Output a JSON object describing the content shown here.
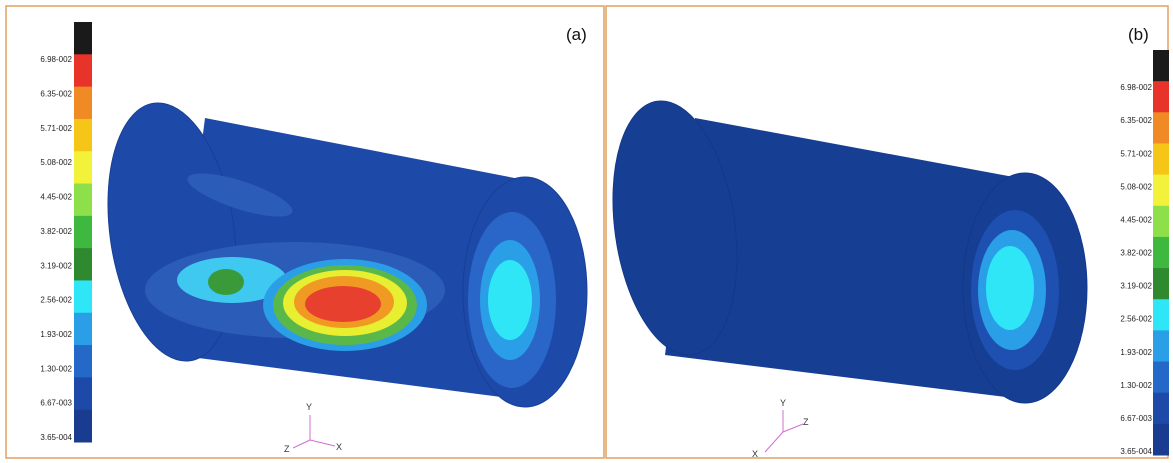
{
  "panels": [
    {
      "label": "(a)",
      "colorbar_labels": [
        "6.98-002",
        "6.35-002",
        "5.71-002",
        "5.08-002",
        "4.45-002",
        "3.82-002",
        "3.19-002",
        "2.56-002",
        "1.93-002",
        "1.30-002",
        "6.67-003",
        "3.65-004"
      ],
      "triad": {
        "y": "Y",
        "z": "Z",
        "x": "X"
      }
    },
    {
      "label": "(b)",
      "colorbar_labels": [
        "6.98-002",
        "6.35-002",
        "5.71-002",
        "5.08-002",
        "4.45-002",
        "3.82-002",
        "3.19-002",
        "2.56-002",
        "1.93-002",
        "1.30-002",
        "6.67-003",
        "3.65-004"
      ],
      "triad": {
        "y": "Y",
        "z": "Z",
        "x": "X"
      }
    }
  ]
}
